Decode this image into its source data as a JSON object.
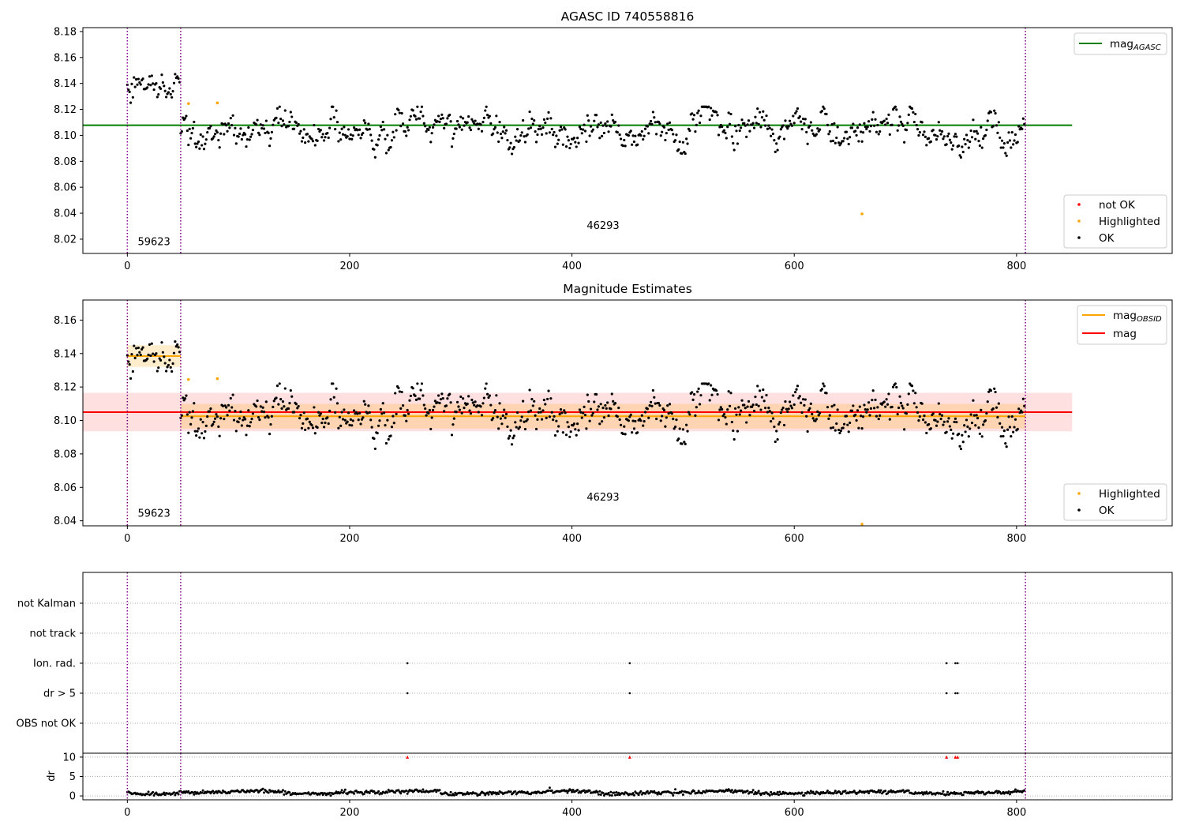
{
  "figure": {
    "background": "#ffffff"
  },
  "colors": {
    "ok": "#000000",
    "not_ok": "#ff0000",
    "highlighted": "#ffa500",
    "mag_agasc": "#008000",
    "mag_obsid": "#ffa500",
    "mag": "#ff0000",
    "obsid_divider": "#800080"
  },
  "observations": [
    {
      "start": 0,
      "end": 48,
      "obsid": "59623",
      "mean": 8.1385,
      "std": 0.0065
    },
    {
      "start": 48,
      "end": 808,
      "obsid": "46293",
      "mean": 8.1025,
      "std": 0.0074
    }
  ],
  "chart_data": [
    {
      "type": "scatter",
      "title": "AGASC ID 740558816",
      "xlim": [
        -40,
        940
      ],
      "ylim": [
        8.009,
        8.183
      ],
      "xticks": [
        0,
        200,
        400,
        600,
        800
      ],
      "yticks": [
        8.02,
        8.04,
        8.06,
        8.08,
        8.1,
        8.12,
        8.14,
        8.16,
        8.18
      ],
      "ytick_labels": [
        "8.02",
        "8.04",
        "8.06",
        "8.08",
        "8.10",
        "8.12",
        "8.14",
        "8.16",
        "8.18"
      ],
      "hlines": [
        {
          "name": "mag",
          "sub": "AGASC",
          "y": 8.1078,
          "x0": -40,
          "x1": 850,
          "color": "#008000"
        }
      ],
      "highlighted": [
        {
          "x": 55,
          "y": 8.1245
        },
        {
          "x": 81,
          "y": 8.125
        },
        {
          "x": 661,
          "y": 8.0395
        }
      ],
      "not_ok": [],
      "annotations": [
        {
          "text": "59623",
          "x": 24,
          "y": 8.0155
        },
        {
          "text": "46293",
          "x": 428,
          "y": 8.028
        }
      ],
      "legend_upper": [
        {
          "label": "mag",
          "sub": "AGASC",
          "color": "#008000"
        }
      ],
      "legend_lower": [
        {
          "label": "not OK",
          "color": "#ff0000"
        },
        {
          "label": "Highlighted",
          "color": "#ffa500"
        },
        {
          "label": "OK",
          "color": "#000000"
        }
      ]
    },
    {
      "type": "scatter",
      "title": "Magnitude Estimates",
      "xlim": [
        -40,
        940
      ],
      "ylim": [
        8.037,
        8.172
      ],
      "xticks": [
        0,
        200,
        400,
        600,
        800
      ],
      "yticks": [
        8.04,
        8.06,
        8.08,
        8.1,
        8.12,
        8.14,
        8.16
      ],
      "ytick_labels": [
        "8.04",
        "8.06",
        "8.08",
        "8.10",
        "8.12",
        "8.14",
        "8.16"
      ],
      "global_mag": {
        "y": 8.105,
        "std": 0.0115,
        "x0": -40,
        "x1": 850,
        "color": "#ff0000"
      },
      "highlighted": [
        {
          "x": 55,
          "y": 8.1245
        },
        {
          "x": 81,
          "y": 8.125
        },
        {
          "x": 661,
          "y": 8.038
        }
      ],
      "annotations": [
        {
          "text": "59623",
          "x": 24,
          "y": 8.0425
        },
        {
          "text": "46293",
          "x": 428,
          "y": 8.052
        }
      ],
      "legend_upper": [
        {
          "label": "mag",
          "sub": "OBSID",
          "color": "#ffa500"
        },
        {
          "label": "mag",
          "sub": "",
          "color": "#ff0000"
        }
      ],
      "legend_lower": [
        {
          "label": "Highlighted",
          "color": "#ffa500"
        },
        {
          "label": "OK",
          "color": "#000000"
        }
      ]
    },
    {
      "type": "scatter",
      "title": "",
      "categories": [
        "OBS not OK",
        "dr > 5",
        "Ion. rad.",
        "not track",
        "not Kalman"
      ],
      "flags": {
        "Ion. rad.": [
          252,
          452,
          737,
          745,
          747
        ],
        "dr > 5": [
          252,
          452,
          737,
          745,
          747
        ],
        "OBS not OK": [],
        "not track": [],
        "not Kalman": []
      }
    },
    {
      "type": "scatter",
      "title": "",
      "ylabel": "dr",
      "xlim": [
        -40,
        940
      ],
      "ylim": [
        -1,
        11
      ],
      "xticks": [
        0,
        200,
        400,
        600,
        800
      ],
      "yticks": [
        0,
        5,
        10
      ],
      "ytick_labels": [
        "0",
        "5",
        "10"
      ],
      "clipped_markers": [
        252,
        452,
        737,
        745,
        747
      ]
    }
  ]
}
